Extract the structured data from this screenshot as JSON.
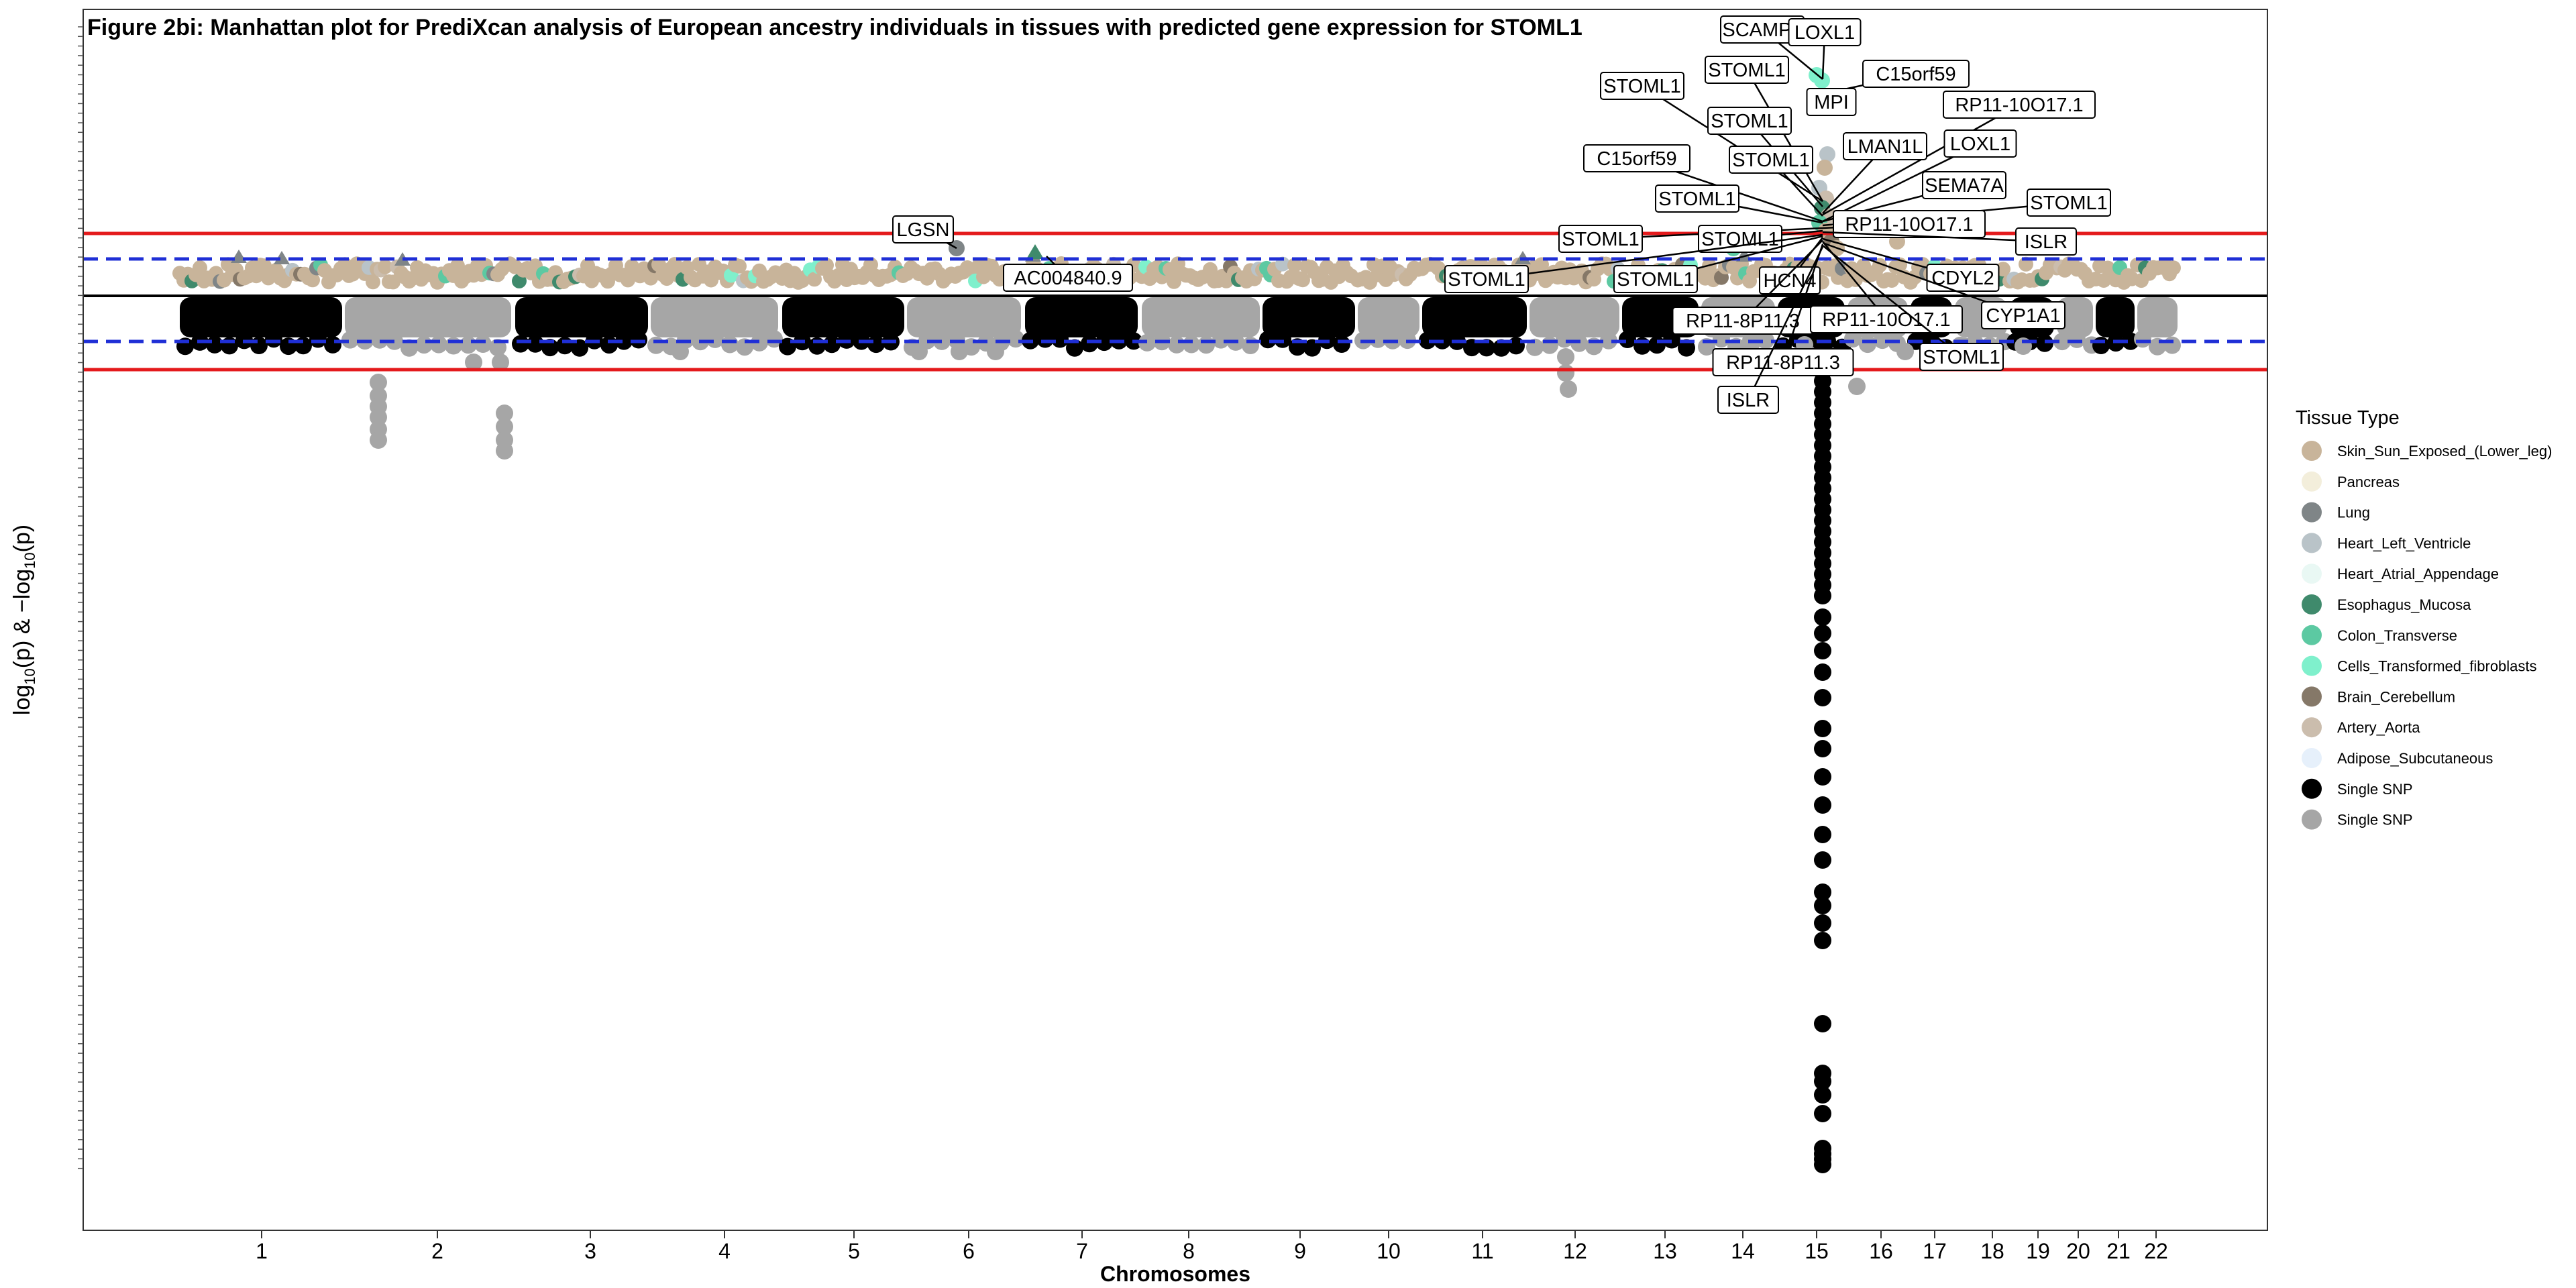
{
  "chart_data": {
    "type": "scatter",
    "title": "Figure 2bi: Manhattan plot for PrediXcan analysis of European ancestry individuals in tissues with predicted gene expression for STOML1",
    "xlabel": "Chromosomes",
    "ylabel": "log10(p) & -log10(p)",
    "categories": [
      "1",
      "2",
      "3",
      "4",
      "5",
      "6",
      "7",
      "8",
      "9",
      "10",
      "11",
      "12",
      "13",
      "14",
      "15",
      "16",
      "17",
      "18",
      "19",
      "20",
      "21",
      "22"
    ],
    "legend": {
      "title": "Tissue Type",
      "position": "right",
      "items": [
        {
          "name": "Skin_Sun_Exposed_(Lower_leg)",
          "color": "#c8b49a"
        },
        {
          "name": "Pancreas",
          "color": "#f3eedb"
        },
        {
          "name": "Lung",
          "color": "#7f8587"
        },
        {
          "name": "Heart_Left_Ventricle",
          "color": "#b9c3c8"
        },
        {
          "name": "Heart_Atrial_Appendage",
          "color": "#e9f8f4"
        },
        {
          "name": "Esophagus_Mucosa",
          "color": "#3f8a6c"
        },
        {
          "name": "Colon_Transverse",
          "color": "#5cc9a2"
        },
        {
          "name": "Cells_Transformed_fibroblasts",
          "color": "#7ff0cc"
        },
        {
          "name": "Brain_Cerebellum",
          "color": "#857868"
        },
        {
          "name": "Artery_Aorta",
          "color": "#cbbdad"
        },
        {
          "name": "Adipose_Subcutaneous",
          "color": "#e6f0fb"
        },
        {
          "name": "Single SNP",
          "color": "#000000"
        },
        {
          "name": "Single SNP",
          "color": "#a6a6a6"
        }
      ]
    },
    "annotations": [
      "SCAMP2",
      "LOXL1",
      "STOML1",
      "STOML1",
      "C15orf59",
      "MPI",
      "RP11-10O17.1",
      "STOML1",
      "LMAN1L",
      "LOXL1",
      "C15orf59",
      "STOML1",
      "SEMA7A",
      "STOML1",
      "STOML1",
      "RP11-10O17.1",
      "LGSN",
      "STOML1",
      "STOML1",
      "ISLR",
      "AC004840.9",
      "STOML1",
      "STOML1",
      "HCN4",
      "CDYL2",
      "RP11-8P11.3",
      "RP11-10O17.1",
      "CYP1A1",
      "RP11-8P11.3",
      "STOML1",
      "ISLR"
    ],
    "grid": false
  }
}
